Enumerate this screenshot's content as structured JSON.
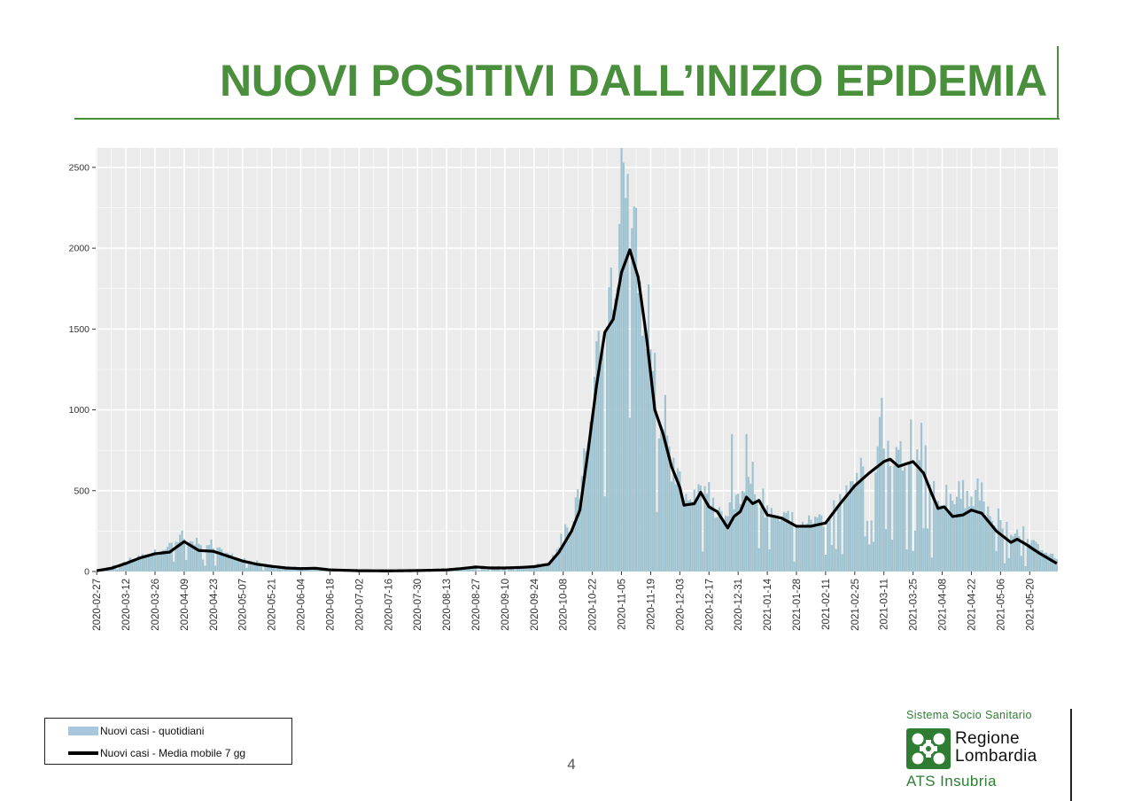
{
  "slide": {
    "title": "NUOVI POSITIVI DALL’INIZIO EPIDEMIA",
    "page_number": "4"
  },
  "colors": {
    "title_green": "#4a8f3c",
    "bars": "#9fc3d0",
    "line": "#000000",
    "panel_bg": "#ebebeb",
    "grid": "#ffffff",
    "legend_bar_swatch": "#a9c6df",
    "logo_green": "#2e7d32"
  },
  "logo": {
    "sistema": "Sistema Socio Sanitario",
    "regione_line1": "Regione",
    "regione_line2": "Lombardia",
    "ats": "ATS Insubria",
    "icon": "lombardia-rose-icon"
  },
  "chart_data": {
    "type": "bar",
    "title": "",
    "xlabel": "",
    "ylabel": "",
    "x_start": "2020-02-27",
    "x_end": "2021-06-02",
    "ylim": [
      0,
      2620
    ],
    "yticks": [
      0,
      500,
      1000,
      1500,
      2000,
      2500
    ],
    "xtick_labels": [
      "2020-02-27",
      "2020-03-12",
      "2020-03-26",
      "2020-04-09",
      "2020-04-23",
      "2020-05-07",
      "2020-05-21",
      "2020-06-04",
      "2020-06-18",
      "2020-07-02",
      "2020-07-16",
      "2020-07-30",
      "2020-08-13",
      "2020-08-27",
      "2020-09-10",
      "2020-09-24",
      "2020-10-08",
      "2020-10-22",
      "2020-11-05",
      "2020-11-19",
      "2020-12-03",
      "2020-12-17",
      "2020-12-31",
      "2021-01-14",
      "2021-01-28",
      "2021-02-11",
      "2021-02-25",
      "2021-03-11",
      "2021-03-25",
      "2021-04-08",
      "2021-04-22",
      "2021-05-06",
      "2021-05-20"
    ],
    "grid": true,
    "legend": {
      "placement": "bottom-left",
      "entries": [
        "Nuovi casi - quotidiani",
        "Nuovi casi - Media mobile 7 gg"
      ]
    },
    "series": [
      {
        "name": "Nuovi casi - quotidiani",
        "type": "bar",
        "anchors": [
          [
            "2020-02-27",
            5
          ],
          [
            "2020-03-05",
            25
          ],
          [
            "2020-03-12",
            60
          ],
          [
            "2020-03-19",
            95
          ],
          [
            "2020-03-26",
            120
          ],
          [
            "2020-04-02",
            160
          ],
          [
            "2020-04-07",
            200
          ],
          [
            "2020-04-09",
            195
          ],
          [
            "2020-04-16",
            155
          ],
          [
            "2020-04-23",
            145
          ],
          [
            "2020-04-30",
            110
          ],
          [
            "2020-05-07",
            70
          ],
          [
            "2020-05-14",
            50
          ],
          [
            "2020-05-21",
            35
          ],
          [
            "2020-05-28",
            25
          ],
          [
            "2020-06-04",
            20
          ],
          [
            "2020-06-11",
            25
          ],
          [
            "2020-06-18",
            12
          ],
          [
            "2020-07-02",
            8
          ],
          [
            "2020-07-16",
            6
          ],
          [
            "2020-07-30",
            8
          ],
          [
            "2020-08-13",
            12
          ],
          [
            "2020-08-20",
            20
          ],
          [
            "2020-08-27",
            30
          ],
          [
            "2020-09-03",
            25
          ],
          [
            "2020-09-10",
            25
          ],
          [
            "2020-09-17",
            30
          ],
          [
            "2020-09-24",
            35
          ],
          [
            "2020-10-01",
            50
          ],
          [
            "2020-10-06",
            150
          ],
          [
            "2020-10-12",
            280
          ],
          [
            "2020-10-16",
            450
          ],
          [
            "2020-10-20",
            900
          ],
          [
            "2020-10-24",
            1300
          ],
          [
            "2020-10-28",
            1650
          ],
          [
            "2020-11-01",
            1900
          ],
          [
            "2020-11-05",
            2200
          ],
          [
            "2020-11-09",
            2250
          ],
          [
            "2020-11-13",
            1900
          ],
          [
            "2020-11-17",
            1500
          ],
          [
            "2020-11-21",
            1000
          ],
          [
            "2020-11-25",
            850
          ],
          [
            "2020-11-29",
            650
          ],
          [
            "2020-12-03",
            500
          ],
          [
            "2020-12-07",
            450
          ],
          [
            "2020-12-13",
            500
          ],
          [
            "2020-12-17",
            420
          ],
          [
            "2020-12-21",
            380
          ],
          [
            "2020-12-26",
            320
          ],
          [
            "2020-12-31",
            450
          ],
          [
            "2021-01-05",
            520
          ],
          [
            "2021-01-10",
            430
          ],
          [
            "2021-01-14",
            370
          ],
          [
            "2021-01-21",
            350
          ],
          [
            "2021-01-28",
            300
          ],
          [
            "2021-02-04",
            300
          ],
          [
            "2021-02-11",
            330
          ],
          [
            "2021-02-18",
            450
          ],
          [
            "2021-02-25",
            580
          ],
          [
            "2021-03-04",
            680
          ],
          [
            "2021-03-11",
            740
          ],
          [
            "2021-03-18",
            720
          ],
          [
            "2021-03-25",
            740
          ],
          [
            "2021-04-01",
            620
          ],
          [
            "2021-04-06",
            420
          ],
          [
            "2021-04-13",
            430
          ],
          [
            "2021-04-20",
            430
          ],
          [
            "2021-04-27",
            420
          ],
          [
            "2021-05-04",
            300
          ],
          [
            "2021-05-11",
            240
          ],
          [
            "2021-05-18",
            200
          ],
          [
            "2021-05-25",
            150
          ],
          [
            "2021-06-02",
            80
          ]
        ],
        "peaks": [
          [
            "2020-11-05",
            2650
          ],
          [
            "2020-11-08",
            2460
          ],
          [
            "2020-11-12",
            2250
          ],
          [
            "2020-11-07",
            2310
          ],
          [
            "2020-11-04",
            2150
          ],
          [
            "2020-10-31",
            1880
          ],
          [
            "2020-12-28",
            850
          ],
          [
            "2021-01-04",
            850
          ],
          [
            "2021-03-10",
            1075
          ],
          [
            "2021-03-24",
            940
          ],
          [
            "2021-03-29",
            920
          ],
          [
            "2021-04-25",
            575
          ],
          [
            "2021-01-07",
            680
          ]
        ]
      },
      {
        "name": "Nuovi casi - Media mobile 7 gg",
        "type": "line",
        "points": [
          [
            "2020-02-27",
            5
          ],
          [
            "2020-03-05",
            20
          ],
          [
            "2020-03-12",
            50
          ],
          [
            "2020-03-19",
            85
          ],
          [
            "2020-03-26",
            110
          ],
          [
            "2020-04-02",
            120
          ],
          [
            "2020-04-09",
            185
          ],
          [
            "2020-04-16",
            130
          ],
          [
            "2020-04-23",
            125
          ],
          [
            "2020-04-30",
            95
          ],
          [
            "2020-05-07",
            65
          ],
          [
            "2020-05-14",
            45
          ],
          [
            "2020-05-21",
            32
          ],
          [
            "2020-05-28",
            22
          ],
          [
            "2020-06-04",
            18
          ],
          [
            "2020-06-11",
            20
          ],
          [
            "2020-06-18",
            10
          ],
          [
            "2020-07-02",
            5
          ],
          [
            "2020-07-16",
            4
          ],
          [
            "2020-07-30",
            6
          ],
          [
            "2020-08-13",
            10
          ],
          [
            "2020-08-20",
            18
          ],
          [
            "2020-08-27",
            28
          ],
          [
            "2020-09-03",
            22
          ],
          [
            "2020-09-10",
            22
          ],
          [
            "2020-09-17",
            25
          ],
          [
            "2020-09-24",
            30
          ],
          [
            "2020-10-01",
            45
          ],
          [
            "2020-10-06",
            120
          ],
          [
            "2020-10-12",
            250
          ],
          [
            "2020-10-16",
            380
          ],
          [
            "2020-10-20",
            750
          ],
          [
            "2020-10-24",
            1150
          ],
          [
            "2020-10-28",
            1480
          ],
          [
            "2020-11-01",
            1560
          ],
          [
            "2020-11-05",
            1850
          ],
          [
            "2020-11-09",
            1990
          ],
          [
            "2020-11-13",
            1820
          ],
          [
            "2020-11-17",
            1450
          ],
          [
            "2020-11-21",
            1000
          ],
          [
            "2020-11-25",
            850
          ],
          [
            "2020-11-29",
            650
          ],
          [
            "2020-12-03",
            520
          ],
          [
            "2020-12-05",
            410
          ],
          [
            "2020-12-10",
            420
          ],
          [
            "2020-12-13",
            490
          ],
          [
            "2020-12-17",
            400
          ],
          [
            "2020-12-21",
            370
          ],
          [
            "2020-12-26",
            270
          ],
          [
            "2020-12-29",
            340
          ],
          [
            "2021-01-01",
            370
          ],
          [
            "2021-01-04",
            460
          ],
          [
            "2021-01-07",
            420
          ],
          [
            "2021-01-10",
            440
          ],
          [
            "2021-01-14",
            350
          ],
          [
            "2021-01-21",
            330
          ],
          [
            "2021-01-28",
            280
          ],
          [
            "2021-02-04",
            280
          ],
          [
            "2021-02-11",
            300
          ],
          [
            "2021-02-18",
            420
          ],
          [
            "2021-02-25",
            530
          ],
          [
            "2021-03-04",
            610
          ],
          [
            "2021-03-11",
            680
          ],
          [
            "2021-03-14",
            695
          ],
          [
            "2021-03-18",
            650
          ],
          [
            "2021-03-25",
            680
          ],
          [
            "2021-03-30",
            610
          ],
          [
            "2021-04-03",
            480
          ],
          [
            "2021-04-06",
            390
          ],
          [
            "2021-04-09",
            400
          ],
          [
            "2021-04-13",
            340
          ],
          [
            "2021-04-18",
            350
          ],
          [
            "2021-04-22",
            380
          ],
          [
            "2021-04-27",
            360
          ],
          [
            "2021-05-04",
            250
          ],
          [
            "2021-05-11",
            180
          ],
          [
            "2021-05-14",
            200
          ],
          [
            "2021-05-18",
            170
          ],
          [
            "2021-05-25",
            110
          ],
          [
            "2021-06-02",
            50
          ]
        ]
      }
    ]
  }
}
